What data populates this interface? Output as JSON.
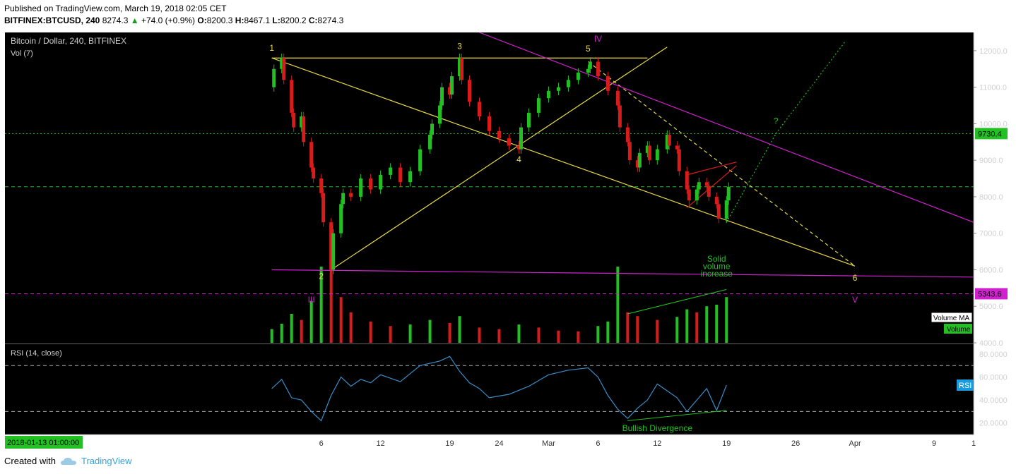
{
  "header": {
    "published": "Published on TradingView.com, March 19, 2018 02:05 CET",
    "symbol": "BITFINEX:BTCUSD, 240",
    "last": "8274.3",
    "change": "+74.0 (+0.9%)",
    "open_label": "O:",
    "open": "8200.3",
    "high_label": "H:",
    "high": "8467.1",
    "low_label": "L:",
    "low": "8200.2",
    "close_label": "C:",
    "close": "8274.3"
  },
  "footer": {
    "created_with": "Created with",
    "brand": "TradingView"
  },
  "colors": {
    "background": "#000000",
    "up": "#22c022",
    "down": "#d81c1c",
    "wedge": "#e8d84a",
    "magenta": "#d020d0",
    "green_line": "#22c022",
    "rsi": "#3a8ec8",
    "axis_text": "#d0d0d0"
  },
  "chart_data": {
    "type": "candlestick",
    "title": "Bitcoin / Dollar, 240, BITFINEX",
    "volume_label": "Vol (7)",
    "xlim": [
      "2018-01-05",
      "2018-04-13"
    ],
    "ylim": [
      4000,
      12500
    ],
    "y_ticks": [
      "12000.0",
      "11000.0",
      "10000.0",
      "9000.0",
      "8000.0",
      "7000.0",
      "6000.0",
      "5000.0",
      "4000.0"
    ],
    "x_ticks": [
      {
        "label": "6",
        "date": "2018-02-06"
      },
      {
        "label": "12",
        "date": "2018-02-12"
      },
      {
        "label": "19",
        "date": "2018-02-19"
      },
      {
        "label": "24",
        "date": "2018-02-24"
      },
      {
        "label": "Mar",
        "date": "2018-03-01"
      },
      {
        "label": "6",
        "date": "2018-03-06"
      },
      {
        "label": "12",
        "date": "2018-03-12"
      },
      {
        "label": "19",
        "date": "2018-03-19"
      },
      {
        "label": "26",
        "date": "2018-03-26"
      },
      {
        "label": "Apr",
        "date": "2018-04-01"
      },
      {
        "label": "9",
        "date": "2018-04-09"
      },
      {
        "label": "1",
        "date": "2018-04-13"
      }
    ],
    "crosshair_date_label": "2018-01-13 01:00:00",
    "price_path": [
      [
        "2018-02-01",
        11000
      ],
      [
        "2018-02-01",
        11500
      ],
      [
        "2018-02-02",
        11800
      ],
      [
        "2018-02-02",
        11200
      ],
      [
        "2018-02-03",
        10300
      ],
      [
        "2018-02-03",
        9900
      ],
      [
        "2018-02-04",
        10200
      ],
      [
        "2018-02-04",
        9500
      ],
      [
        "2018-02-05",
        8800
      ],
      [
        "2018-02-05",
        8500
      ],
      [
        "2018-02-06",
        8100
      ],
      [
        "2018-02-06",
        7300
      ],
      [
        "2018-02-07",
        6000
      ],
      [
        "2018-02-07",
        7000
      ],
      [
        "2018-02-08",
        7800
      ],
      [
        "2018-02-08",
        8100
      ],
      [
        "2018-02-09",
        8000
      ],
      [
        "2018-02-10",
        8500
      ],
      [
        "2018-02-11",
        8200
      ],
      [
        "2018-02-12",
        8600
      ],
      [
        "2018-02-13",
        8800
      ],
      [
        "2018-02-14",
        8400
      ],
      [
        "2018-02-15",
        8700
      ],
      [
        "2018-02-16",
        9300
      ],
      [
        "2018-02-17",
        9700
      ],
      [
        "2018-02-17",
        10000
      ],
      [
        "2018-02-18",
        10500
      ],
      [
        "2018-02-18",
        11000
      ],
      [
        "2018-02-19",
        10800
      ],
      [
        "2018-02-19",
        11300
      ],
      [
        "2018-02-20",
        11800
      ],
      [
        "2018-02-20",
        11200
      ],
      [
        "2018-02-21",
        10600
      ],
      [
        "2018-02-22",
        10200
      ],
      [
        "2018-02-23",
        9800
      ],
      [
        "2018-02-24",
        9600
      ],
      [
        "2018-02-25",
        9400
      ],
      [
        "2018-02-26",
        9300
      ],
      [
        "2018-02-26",
        9900
      ],
      [
        "2018-02-27",
        10300
      ],
      [
        "2018-02-28",
        10700
      ],
      [
        "2018-03-01",
        10900
      ],
      [
        "2018-03-02",
        11000
      ],
      [
        "2018-03-03",
        11200
      ],
      [
        "2018-03-04",
        11400
      ],
      [
        "2018-03-05",
        11500
      ],
      [
        "2018-03-05",
        11700
      ],
      [
        "2018-03-06",
        11300
      ],
      [
        "2018-03-07",
        10900
      ],
      [
        "2018-03-08",
        10500
      ],
      [
        "2018-03-08",
        9900
      ],
      [
        "2018-03-09",
        9500
      ],
      [
        "2018-03-09",
        9000
      ],
      [
        "2018-03-10",
        8800
      ],
      [
        "2018-03-10",
        9200
      ],
      [
        "2018-03-11",
        9400
      ],
      [
        "2018-03-11",
        9000
      ],
      [
        "2018-03-12",
        9300
      ],
      [
        "2018-03-13",
        9700
      ],
      [
        "2018-03-13",
        9400
      ],
      [
        "2018-03-14",
        9300
      ],
      [
        "2018-03-14",
        8700
      ],
      [
        "2018-03-15",
        8200
      ],
      [
        "2018-03-15",
        7900
      ],
      [
        "2018-03-16",
        8200
      ],
      [
        "2018-03-16",
        8400
      ],
      [
        "2018-03-17",
        8300
      ],
      [
        "2018-03-17",
        8000
      ],
      [
        "2018-03-18",
        7800
      ],
      [
        "2018-03-18",
        7400
      ],
      [
        "2018-03-19",
        7900
      ],
      [
        "2018-03-19",
        8274
      ]
    ],
    "volume_ylim": [
      0,
      100
    ],
    "volume_bars": [
      [
        "2018-02-01",
        18
      ],
      [
        "2018-02-02",
        25
      ],
      [
        "2018-02-03",
        38
      ],
      [
        "2018-02-04",
        30
      ],
      [
        "2018-02-05",
        55
      ],
      [
        "2018-02-06",
        100
      ],
      [
        "2018-02-07",
        95
      ],
      [
        "2018-02-08",
        60
      ],
      [
        "2018-02-09",
        40
      ],
      [
        "2018-02-11",
        28
      ],
      [
        "2018-02-13",
        22
      ],
      [
        "2018-02-15",
        24
      ],
      [
        "2018-02-17",
        30
      ],
      [
        "2018-02-19",
        26
      ],
      [
        "2018-02-20",
        35
      ],
      [
        "2018-02-22",
        20
      ],
      [
        "2018-02-24",
        18
      ],
      [
        "2018-02-26",
        24
      ],
      [
        "2018-02-28",
        20
      ],
      [
        "2018-03-02",
        16
      ],
      [
        "2018-03-04",
        15
      ],
      [
        "2018-03-06",
        22
      ],
      [
        "2018-03-07",
        28
      ],
      [
        "2018-03-08",
        100
      ],
      [
        "2018-03-09",
        40
      ],
      [
        "2018-03-10",
        35
      ],
      [
        "2018-03-12",
        30
      ],
      [
        "2018-03-14",
        34
      ],
      [
        "2018-03-15",
        44
      ],
      [
        "2018-03-16",
        40
      ],
      [
        "2018-03-17",
        48
      ],
      [
        "2018-03-18",
        50
      ],
      [
        "2018-03-19",
        60
      ]
    ],
    "rsi": {
      "label": "RSI (14, close)",
      "ylim": [
        10,
        88
      ],
      "y_ticks": [
        "80.0000",
        "60.0000",
        "40.0000",
        "20.0000"
      ],
      "overbought": 70,
      "oversold": 30,
      "path": [
        [
          "2018-02-01",
          50
        ],
        [
          "2018-02-02",
          58
        ],
        [
          "2018-02-03",
          42
        ],
        [
          "2018-02-04",
          40
        ],
        [
          "2018-02-05",
          30
        ],
        [
          "2018-02-06",
          22
        ],
        [
          "2018-02-07",
          44
        ],
        [
          "2018-02-08",
          60
        ],
        [
          "2018-02-09",
          52
        ],
        [
          "2018-02-10",
          58
        ],
        [
          "2018-02-11",
          55
        ],
        [
          "2018-02-12",
          62
        ],
        [
          "2018-02-14",
          56
        ],
        [
          "2018-02-16",
          70
        ],
        [
          "2018-02-18",
          74
        ],
        [
          "2018-02-19",
          78
        ],
        [
          "2018-02-20",
          65
        ],
        [
          "2018-02-21",
          55
        ],
        [
          "2018-02-22",
          50
        ],
        [
          "2018-02-23",
          42
        ],
        [
          "2018-02-25",
          45
        ],
        [
          "2018-02-27",
          52
        ],
        [
          "2018-03-01",
          62
        ],
        [
          "2018-03-03",
          66
        ],
        [
          "2018-03-05",
          68
        ],
        [
          "2018-03-06",
          60
        ],
        [
          "2018-03-07",
          44
        ],
        [
          "2018-03-08",
          32
        ],
        [
          "2018-03-09",
          24
        ],
        [
          "2018-03-10",
          33
        ],
        [
          "2018-03-11",
          40
        ],
        [
          "2018-03-12",
          54
        ],
        [
          "2018-03-13",
          48
        ],
        [
          "2018-03-14",
          42
        ],
        [
          "2018-03-15",
          30
        ],
        [
          "2018-03-16",
          40
        ],
        [
          "2018-03-17",
          50
        ],
        [
          "2018-03-18",
          31
        ],
        [
          "2018-03-19",
          53
        ]
      ]
    },
    "horizontal_levels": [
      {
        "value": 9730.4,
        "label": "9730.4",
        "color": "#22c022",
        "style": "dotted"
      },
      {
        "value": 8274.3,
        "label": "",
        "color": "#22c022",
        "style": "dashed"
      },
      {
        "value": 5343.6,
        "label": "5343.6",
        "color": "#d020d0",
        "style": "dashed"
      }
    ],
    "trendlines": [
      {
        "from": [
          "2018-02-01",
          11800
        ],
        "to": [
          "2018-04-01",
          6100
        ],
        "color": "#e8d84a",
        "style": "solid"
      },
      {
        "from": [
          "2018-02-01",
          11800
        ],
        "to": [
          "2018-03-11",
          11800
        ],
        "color": "#e8d84a",
        "style": "solid"
      },
      {
        "from": [
          "2018-02-07",
          6000
        ],
        "to": [
          "2018-03-13",
          12100
        ],
        "color": "#e8d84a",
        "style": "solid"
      },
      {
        "from": [
          "2018-03-05",
          11700
        ],
        "to": [
          "2018-04-01",
          6100
        ],
        "color": "#e8d84a",
        "style": "dashed"
      },
      {
        "from": [
          "2018-02-01",
          6000
        ],
        "to": [
          "2018-04-13",
          5800
        ],
        "color": "#d020d0",
        "style": "solid"
      },
      {
        "from": [
          "2018-02-22",
          12500
        ],
        "to": [
          "2018-04-13",
          7300
        ],
        "color": "#d020d0",
        "style": "solid"
      },
      {
        "from": [
          "2018-03-19",
          7300
        ],
        "to": [
          "2018-03-24",
          9730
        ],
        "color": "#22c022",
        "style": "dotted"
      },
      {
        "from": [
          "2018-03-24",
          9730
        ],
        "to": [
          "2018-03-31",
          12250
        ],
        "color": "#22c022",
        "style": "dotted"
      },
      {
        "from": [
          "2018-03-15",
          8600
        ],
        "to": [
          "2018-03-20",
          8950
        ],
        "color": "#d81c1c",
        "style": "solid"
      },
      {
        "from": [
          "2018-03-15",
          7700
        ],
        "to": [
          "2018-03-20",
          8850
        ],
        "color": "#d81c1c",
        "style": "solid"
      }
    ],
    "annotations": [
      {
        "text": "1",
        "at": [
          "2018-02-01",
          12000
        ],
        "color": "#e8d84a"
      },
      {
        "text": "2",
        "at": [
          "2018-02-06",
          5750
        ],
        "color": "#e8d84a"
      },
      {
        "text": "3",
        "at": [
          "2018-02-20",
          12050
        ],
        "color": "#e8d84a"
      },
      {
        "text": "4",
        "at": [
          "2018-02-26",
          8950
        ],
        "color": "#e8d84a"
      },
      {
        "text": "5",
        "at": [
          "2018-03-05",
          11980
        ],
        "color": "#e8d84a"
      },
      {
        "text": "6",
        "at": [
          "2018-04-01",
          5700
        ],
        "color": "#e8d84a"
      },
      {
        "text": "IV",
        "at": [
          "2018-03-06",
          12250
        ],
        "color": "#d020d0"
      },
      {
        "text": "III",
        "at": [
          "2018-02-05",
          5100
        ],
        "color": "#d020d0"
      },
      {
        "text": "V",
        "at": [
          "2018-04-01",
          5100
        ],
        "color": "#d020d0"
      },
      {
        "text": "?",
        "at": [
          "2018-03-24",
          10000
        ],
        "color": "#22c022"
      },
      {
        "text": "Solid",
        "at": [
          "2018-03-18",
          6220
        ],
        "color": "#22c022"
      },
      {
        "text": "volume",
        "at": [
          "2018-03-18",
          6020
        ],
        "color": "#22c022"
      },
      {
        "text": "increase",
        "at": [
          "2018-03-18",
          5820
        ],
        "color": "#22c022"
      },
      {
        "text": "Bullish Divergence",
        "at": [
          "2018-03-12",
          10
        ],
        "color": "#22c022"
      }
    ],
    "legend": [
      "Volume MA",
      "Volume"
    ],
    "rsi_tag": "RSI"
  }
}
